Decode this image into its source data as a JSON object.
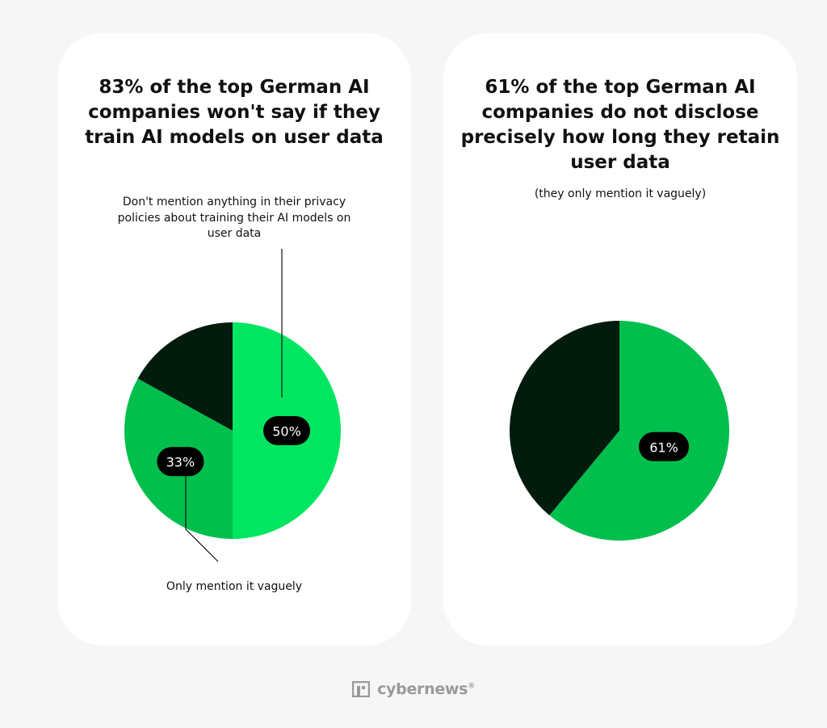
{
  "colors": {
    "background": "#f6f6f6",
    "card": "#ffffff",
    "bright_green": "#00e660",
    "green": "#00bf4d",
    "dark_green": "#011b0d",
    "pill": "#000000"
  },
  "chart_data": [
    {
      "type": "pie",
      "title": "83% of the top German AI\ncompanies won't say if they\ntrain AI models on user data",
      "slices": [
        {
          "label": "Don't mention anything in their privacy\npolicies about training their AI models on\nuser data",
          "value": 50,
          "display": "50%",
          "color": "#00e660"
        },
        {
          "label": "Only mention it vaguely",
          "value": 33,
          "display": "33%",
          "color": "#00bf4d"
        },
        {
          "label": "",
          "value": 17,
          "display": "",
          "color": "#011b0d"
        }
      ]
    },
    {
      "type": "pie",
      "title": "61% of the top German AI\ncompanies do not disclose\nprecisely how long they retain\nuser data",
      "subtitle": "(they only mention it vaguely)",
      "slices": [
        {
          "label": "",
          "value": 61,
          "display": "61%",
          "color": "#00bf4d"
        },
        {
          "label": "",
          "value": 39,
          "display": "",
          "color": "#011b0d"
        }
      ]
    }
  ],
  "footer": {
    "logo_text": "cybernews",
    "logo_mark": "®",
    "logo_icon": "cybernews-logo-icon"
  }
}
